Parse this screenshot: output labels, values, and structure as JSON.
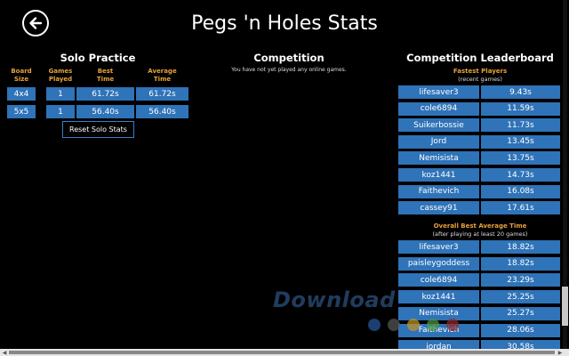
{
  "header": {
    "title": "Pegs 'n Holes Stats"
  },
  "solo": {
    "title": "Solo Practice",
    "columns": [
      "Board\nSize",
      "Games\nPlayed",
      "Best\nTime",
      "Average\nTime"
    ],
    "rows": [
      [
        "4x4",
        "1",
        "61.72s",
        "61.72s"
      ],
      [
        "5x5",
        "1",
        "56.40s",
        "56.40s"
      ]
    ],
    "reset_label": "Reset Solo Stats"
  },
  "competition": {
    "title": "Competition",
    "note": "You have not yet played any online games."
  },
  "leaderboard": {
    "title": "Competition Leaderboard",
    "fastest": {
      "heading": "Fastest Players",
      "subheading": "(recent games)",
      "rows": [
        [
          "lifesaver3",
          "9.43s"
        ],
        [
          "cole6894",
          "11.59s"
        ],
        [
          "Suikerbossie",
          "11.73s"
        ],
        [
          "Jord",
          "13.45s"
        ],
        [
          "Nemisista",
          "13.75s"
        ],
        [
          "koz1441",
          "14.73s"
        ],
        [
          "Faithevich",
          "16.08s"
        ],
        [
          "cassey91",
          "17.61s"
        ]
      ]
    },
    "average": {
      "heading": "Overall Best Average Time",
      "subheading": "(after playing at least 20 games)",
      "rows": [
        [
          "lifesaver3",
          "18.82s"
        ],
        [
          "paisleygoddess",
          "18.82s"
        ],
        [
          "cole6894",
          "23.29s"
        ],
        [
          "koz1441",
          "25.25s"
        ],
        [
          "Nemisista",
          "25.27s"
        ],
        [
          "Faithevich",
          "28.06s"
        ],
        [
          "jordan",
          "30.58s"
        ]
      ]
    }
  },
  "watermark": {
    "text": "Download"
  },
  "colors": {
    "cell_bg": "#2f73b8",
    "header_orange": "#e8a23a",
    "background": "#000000"
  },
  "icons": {
    "back": "back-arrow-icon"
  }
}
